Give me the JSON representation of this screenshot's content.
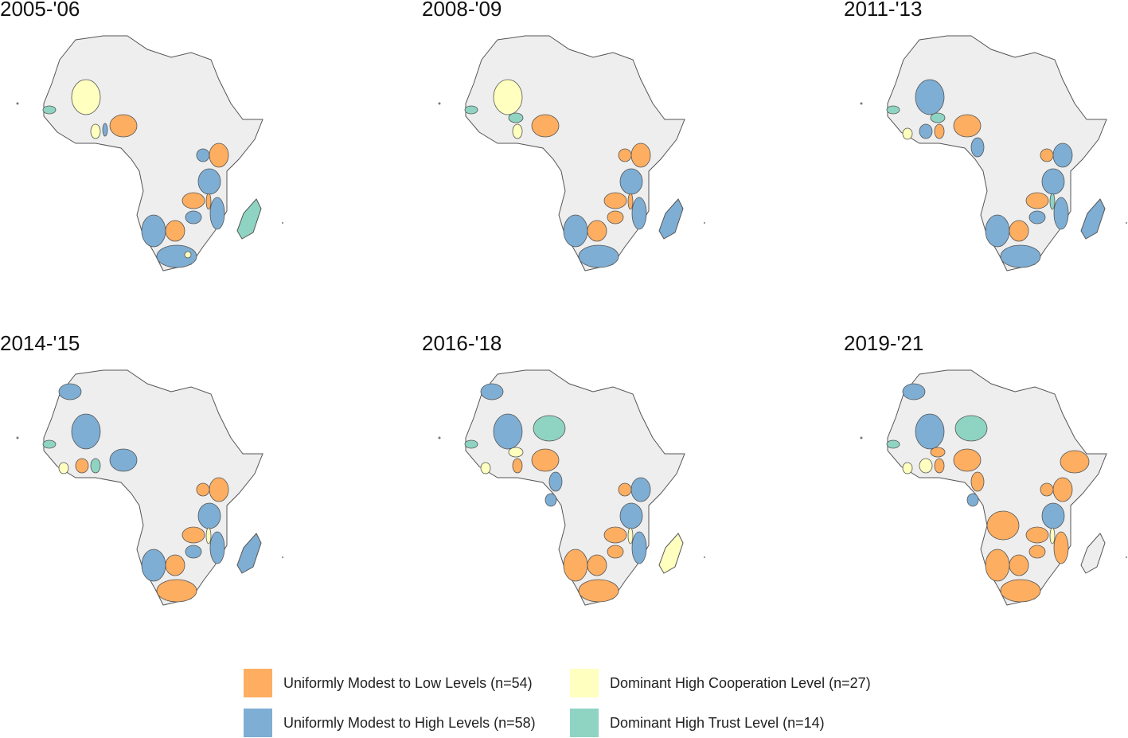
{
  "colors": {
    "low": "#fdae61",
    "high": "#7eaed4",
    "coop": "#ffffbf",
    "trust": "#8fd4c2",
    "none": "#eeeeee",
    "border": "#555555"
  },
  "panels": [
    {
      "title": "2005-'06",
      "regions": {
        "mali": "coop",
        "senegal": "trust",
        "ghana": "coop",
        "benin": "high",
        "nigeria": "low",
        "uganda": "high",
        "kenya": "low",
        "tanzania": "high",
        "zambia": "low",
        "malawi": "low",
        "zimbabwe": "high",
        "mozambique": "high",
        "namibia": "high",
        "botswana": "low",
        "southafrica": "high",
        "lesotho": "coop",
        "madagascar": "trust"
      }
    },
    {
      "title": "2008-'09",
      "regions": {
        "mali": "coop",
        "senegal": "trust",
        "ghana": "coop",
        "burkina": "trust",
        "nigeria": "low",
        "uganda": "low",
        "kenya": "low",
        "tanzania": "high",
        "zambia": "low",
        "malawi": "low",
        "zimbabwe": "low",
        "mozambique": "high",
        "namibia": "high",
        "botswana": "low",
        "southafrica": "high",
        "madagascar": "high"
      }
    },
    {
      "title": "2011-'13",
      "regions": {
        "mali": "high",
        "senegal": "trust",
        "liberia": "coop",
        "ivorycoast": "high",
        "ghana": "low",
        "burkina": "trust",
        "nigeria": "low",
        "cameroon": "high",
        "uganda": "low",
        "kenya": "high",
        "tanzania": "high",
        "zambia": "low",
        "malawi": "trust",
        "zimbabwe": "high",
        "mozambique": "high",
        "namibia": "high",
        "botswana": "low",
        "southafrica": "high",
        "madagascar": "high"
      }
    },
    {
      "title": "2014-'15",
      "regions": {
        "morocco": "high",
        "mali": "high",
        "senegal": "trust",
        "liberia": "coop",
        "ivorycoast": "low",
        "ghana": "trust",
        "nigeria": "high",
        "uganda": "low",
        "kenya": "low",
        "tanzania": "high",
        "zambia": "low",
        "malawi": "coop",
        "zimbabwe": "high",
        "mozambique": "high",
        "namibia": "high",
        "botswana": "low",
        "southafrica": "low",
        "madagascar": "high"
      }
    },
    {
      "title": "2016-'18",
      "regions": {
        "morocco": "high",
        "mali": "high",
        "niger": "trust",
        "senegal": "trust",
        "liberia": "coop",
        "burkina": "coop",
        "ghana": "low",
        "nigeria": "low",
        "cameroon": "high",
        "gabon": "high",
        "uganda": "low",
        "kenya": "high",
        "tanzania": "high",
        "zambia": "low",
        "malawi": "coop",
        "zimbabwe": "low",
        "mozambique": "high",
        "namibia": "low",
        "botswana": "low",
        "southafrica": "low",
        "madagascar": "coop"
      }
    },
    {
      "title": "2019-'21",
      "regions": {
        "morocco": "high",
        "mali": "high",
        "niger": "trust",
        "senegal": "trust",
        "liberia": "coop",
        "ivorycoast": "coop",
        "ghana": "low",
        "burkina": "low",
        "nigeria": "low",
        "cameroon": "low",
        "gabon": "high",
        "ethiopia": "low",
        "uganda": "low",
        "kenya": "low",
        "tanzania": "high",
        "angola": "low",
        "zambia": "low",
        "malawi": "coop",
        "zimbabwe": "low",
        "mozambique": "low",
        "namibia": "low",
        "botswana": "low",
        "southafrica": "low"
      }
    }
  ],
  "legend": [
    {
      "key": "low",
      "label": "Uniformly Modest to Low Levels (n=54)"
    },
    {
      "key": "coop",
      "label": "Dominant High Cooperation Level (n=27)"
    },
    {
      "key": "high",
      "label": "Uniformly Modest to High Levels (n=58)"
    },
    {
      "key": "trust",
      "label": "Dominant High Trust Level (n=14)"
    }
  ]
}
